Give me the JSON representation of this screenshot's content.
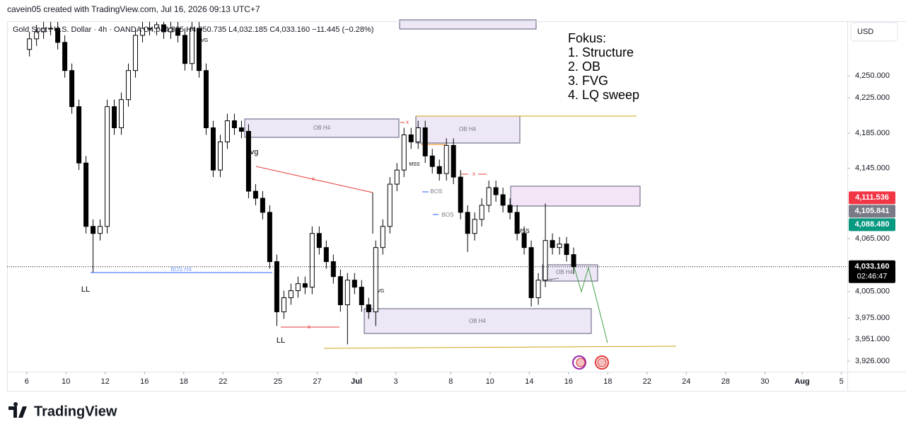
{
  "header": {
    "attribution": "cavein05 created with TradingView.com, Jul 16, 2026 09:13 UTC+7",
    "legend": "Gold Spot / U.S. Dollar · 4h · OANDA  O4,044.895  H4,050.735  L4,032.185  C4,033.160  −11.445 (−0.28%)"
  },
  "currency": "USD",
  "notes": [
    "Fokus:",
    "1. Structure",
    "2. OB",
    "3. FVG",
    "4. LQ sweep"
  ],
  "annotation_labels": [
    "OB H4",
    "OB H4",
    "OB H4",
    "OB H4",
    "fvg",
    "FVG",
    "FVG",
    "BOS H4",
    "BOS",
    "BOS",
    "MSS",
    "MSS",
    "LL",
    "LL",
    "x",
    "x",
    "x",
    "x",
    "x"
  ],
  "price_scale_labels": [
    {
      "value": 4111.536,
      "label": "4,111.536",
      "color": "#f23645"
    },
    {
      "value": 4105.841,
      "label": "4,105.841",
      "color": "#787b86"
    },
    {
      "value": 4088.48,
      "label": "4,088.480",
      "color": "#089981"
    },
    {
      "value": 4033.16,
      "label": "4,033.160",
      "color": "#000000",
      "countdown": "02:46:47"
    }
  ],
  "logo": "TradingView",
  "chart_data": {
    "type": "candlestick",
    "x": [
      0.14,
      0.5,
      0.86,
      1.22,
      1.58,
      1.94,
      2.3,
      2.66,
      3.02,
      3.38,
      3.74,
      4.1,
      4.46,
      4.82,
      5.18,
      5.54,
      5.9,
      6.26,
      6.62,
      6.98,
      7.34,
      7.7,
      8.06,
      8.42,
      8.78,
      9.14,
      9.5,
      9.86,
      10.22,
      10.58,
      10.94,
      11.3,
      11.66,
      12.02,
      12.38,
      12.74,
      13.1,
      13.46,
      13.82,
      14.18,
      14.54,
      14.9,
      15.26,
      15.62,
      15.98,
      16.34,
      16.7,
      17.06,
      17.42,
      17.78,
      18.14,
      18.5,
      18.86,
      19.22,
      19.58,
      19.94,
      20.3,
      20.66,
      21.02,
      21.38,
      21.74,
      22.1,
      22.46,
      22.82,
      23.18,
      23.54,
      23.9,
      24.26,
      24.62,
      24.98,
      25.34,
      25.7,
      26.06,
      26.42,
      26.78,
      27.14,
      27.5,
      27.86
    ],
    "open": [
      4280,
      4292,
      4300,
      4304,
      4304,
      4288,
      4256,
      4215,
      4151,
      4079,
      4071,
      4079,
      4215,
      4191,
      4223,
      4256,
      4296,
      4304,
      4304,
      4308,
      4300,
      4304,
      4296,
      4264,
      4304,
      4256,
      4191,
      4143,
      4175,
      4199,
      4191,
      4187,
      4119,
      4111,
      4095,
      4039,
      3982,
      3998,
      4006,
      4014,
      4010,
      4071,
      4055,
      4039,
      4022,
      3990,
      4018,
      4010,
      3990,
      3982,
      4055,
      4079,
      4127,
      4143,
      4183,
      4175,
      4191,
      4159,
      4147,
      4139,
      4171,
      4135,
      4095,
      4071,
      4087,
      4103,
      4123,
      4115,
      4103,
      4095,
      4071,
      4055,
      3998,
      4018,
      4063,
      4055,
      4059,
      4047
    ],
    "high": [
      4300,
      4308,
      4312,
      4312,
      4312,
      4296,
      4264,
      4223,
      4159,
      4087,
      4087,
      4223,
      4223,
      4231,
      4264,
      4304,
      4312,
      4312,
      4312,
      4312,
      4312,
      4312,
      4304,
      4312,
      4312,
      4264,
      4199,
      4183,
      4207,
      4207,
      4199,
      4195,
      4127,
      4119,
      4103,
      4047,
      4006,
      4014,
      4022,
      4022,
      4079,
      4079,
      4063,
      4047,
      4030,
      4026,
      4026,
      4018,
      3998,
      4063,
      4087,
      4135,
      4151,
      4191,
      4191,
      4199,
      4199,
      4167,
      4155,
      4179,
      4179,
      4143,
      4103,
      4095,
      4111,
      4131,
      4131,
      4123,
      4111,
      4103,
      4079,
      4063,
      4026,
      4105,
      4071,
      4067,
      4067,
      4055
    ],
    "low": [
      4272,
      4284,
      4292,
      4296,
      4280,
      4248,
      4207,
      4143,
      4071,
      4027,
      4063,
      4071,
      4183,
      4183,
      4215,
      4248,
      4288,
      4296,
      4296,
      4292,
      4292,
      4288,
      4256,
      4256,
      4248,
      4183,
      4135,
      4135,
      4167,
      4183,
      4179,
      4111,
      4103,
      4087,
      4031,
      3966,
      3974,
      3990,
      3998,
      4002,
      4002,
      4047,
      4031,
      4014,
      3982,
      3945,
      4002,
      3982,
      3974,
      3966,
      4047,
      4071,
      4119,
      4135,
      4167,
      4167,
      4151,
      4139,
      4131,
      4131,
      4127,
      4087,
      4050,
      4063,
      4079,
      4095,
      4107,
      4095,
      4087,
      4063,
      4047,
      3988,
      3990,
      4010,
      4047,
      4047,
      4039,
      4025
    ],
    "close": [
      4292,
      4300,
      4304,
      4304,
      4288,
      4256,
      4215,
      4151,
      4079,
      4071,
      4079,
      4215,
      4191,
      4223,
      4256,
      4296,
      4304,
      4304,
      4308,
      4300,
      4304,
      4296,
      4264,
      4304,
      4256,
      4191,
      4143,
      4175,
      4199,
      4191,
      4187,
      4119,
      4111,
      4095,
      4039,
      3982,
      3998,
      4006,
      4014,
      4010,
      4071,
      4055,
      4039,
      4022,
      3990,
      4018,
      4010,
      3990,
      3982,
      4055,
      4079,
      4127,
      4143,
      4183,
      4175,
      4191,
      4159,
      4147,
      4139,
      4171,
      4135,
      4095,
      4071,
      4087,
      4103,
      4123,
      4115,
      4103,
      4095,
      4071,
      4055,
      3998,
      4018,
      4063,
      4055,
      4059,
      4047,
      4033.16
    ],
    "up_color": "#ffffff",
    "down_color": "#000000",
    "wick_color": "#000000",
    "xlim": [
      -1,
      41.8
    ],
    "ylim": [
      3914,
      4312
    ],
    "grid": false,
    "xticks": [
      {
        "value": 0,
        "label": "6"
      },
      {
        "value": 2,
        "label": "10"
      },
      {
        "value": 4,
        "label": "12"
      },
      {
        "value": 6,
        "label": "16"
      },
      {
        "value": 8,
        "label": "18"
      },
      {
        "value": 10,
        "label": "22"
      },
      {
        "value": 12.8,
        "label": "25"
      },
      {
        "value": 14.8,
        "label": "27"
      },
      {
        "value": 16.8,
        "label": "Jul"
      },
      {
        "value": 18.8,
        "label": "3"
      },
      {
        "value": 21.6,
        "label": "8"
      },
      {
        "value": 23.6,
        "label": "10"
      },
      {
        "value": 25.6,
        "label": "14"
      },
      {
        "value": 27.6,
        "label": "16"
      },
      {
        "value": 29.6,
        "label": "18"
      },
      {
        "value": 31.6,
        "label": "22"
      },
      {
        "value": 33.6,
        "label": "24"
      },
      {
        "value": 35.6,
        "label": "28"
      },
      {
        "value": 37.6,
        "label": "30"
      },
      {
        "value": 39.5,
        "label": "Aug"
      },
      {
        "value": 41.5,
        "label": "5"
      }
    ],
    "yticks": [
      {
        "value": 4250,
        "label": "4,250.000"
      },
      {
        "value": 4225,
        "label": "4,225.000"
      },
      {
        "value": 4185,
        "label": "4,185.000"
      },
      {
        "value": 4145,
        "label": "4,145.000"
      },
      {
        "value": 4065,
        "label": "4,065.000"
      },
      {
        "value": 4005,
        "label": "4,005.000"
      },
      {
        "value": 3975,
        "label": "3,975.000"
      },
      {
        "value": 3951,
        "label": "3,951.000"
      },
      {
        "value": 3926,
        "label": "3,926.000"
      }
    ]
  }
}
